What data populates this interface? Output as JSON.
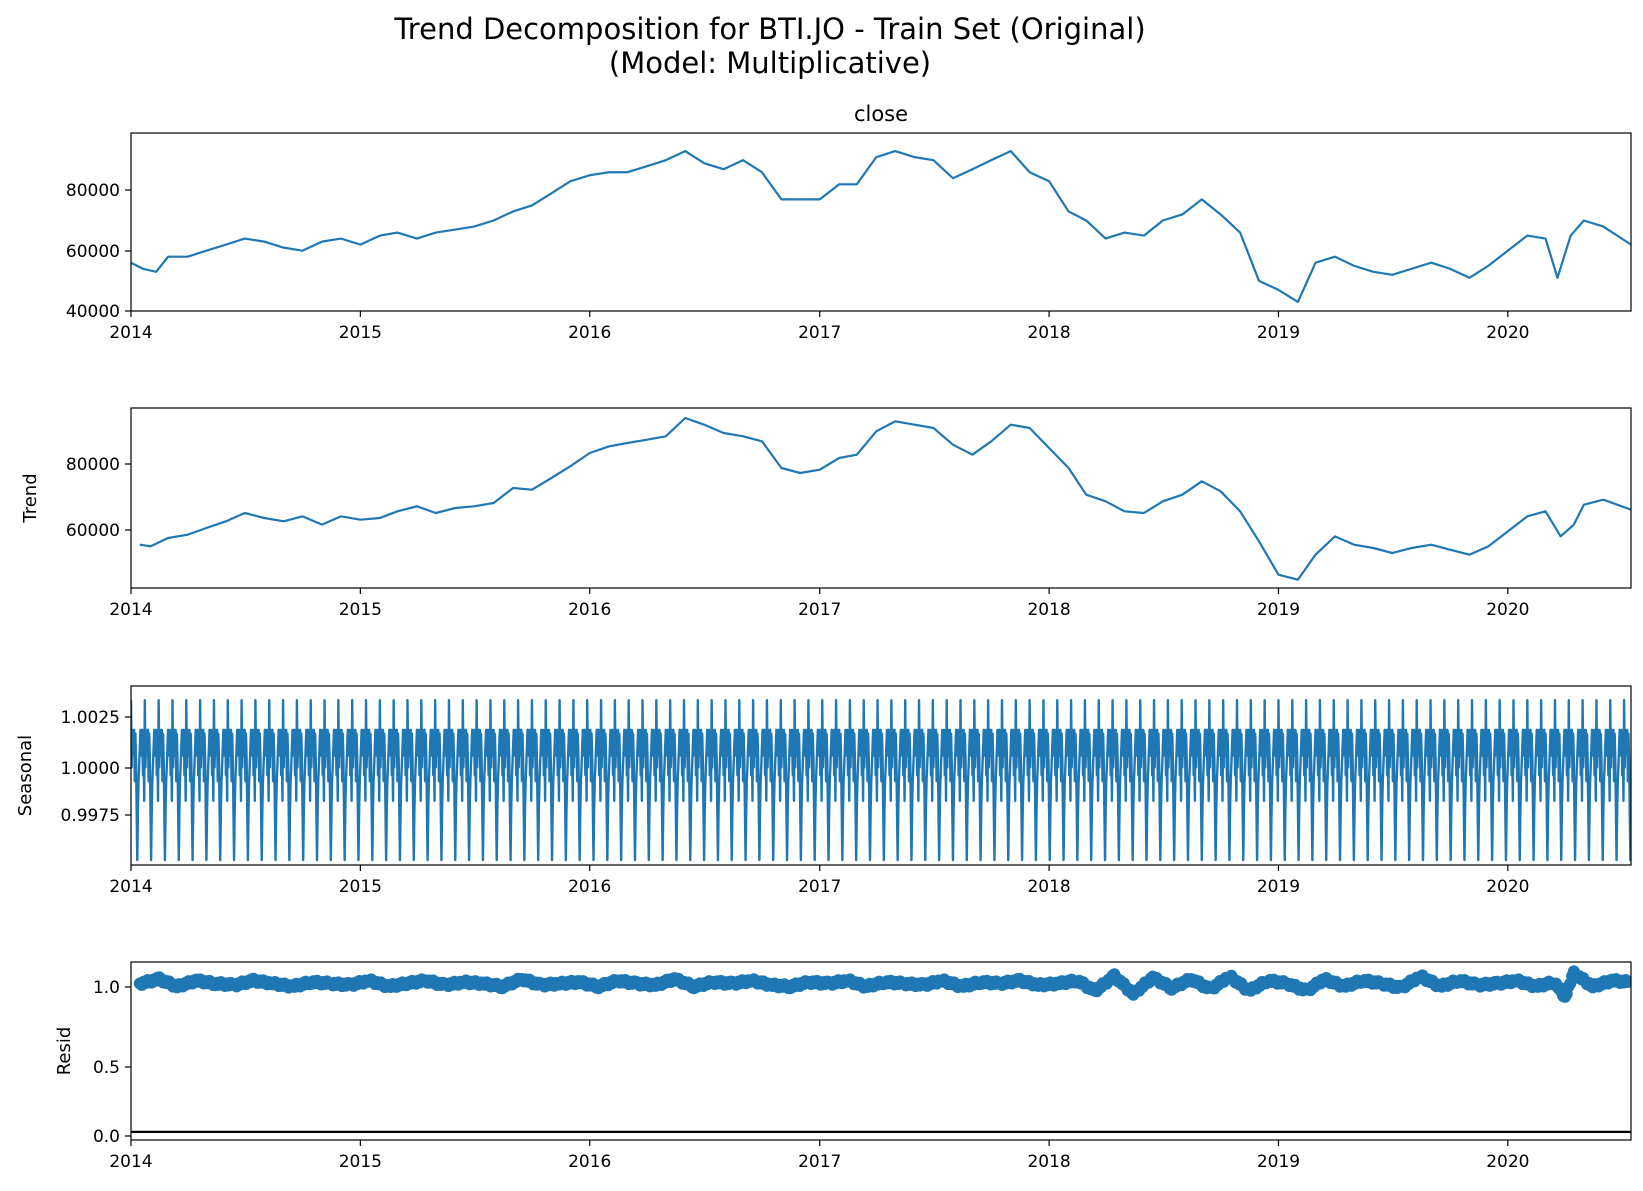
{
  "figure": {
    "title_line1": "Trend Decomposition for BTI.JO - Train Set (Original)",
    "title_line2": "(Model: Multiplicative)"
  },
  "chart_data": [
    {
      "type": "line",
      "panel": "close",
      "title": "close",
      "ylabel": "",
      "x_range": [
        "2014-01-01",
        "2020-07-15"
      ],
      "xticks": [
        "2014",
        "2015",
        "2016",
        "2017",
        "2018",
        "2019",
        "2020"
      ],
      "ylim": [
        40000,
        99000
      ],
      "yticks": [
        "40000",
        "60000",
        "80000"
      ],
      "series_color": "#1f77b4",
      "series": [
        {
          "x": [
            "2014-01-01",
            "2014-01-20",
            "2014-02-10",
            "2014-03-01",
            "2014-04-01",
            "2014-05-01",
            "2014-06-01",
            "2014-07-01",
            "2014-08-01",
            "2014-09-01",
            "2014-10-01",
            "2014-11-01",
            "2014-12-01",
            "2015-01-01",
            "2015-02-01",
            "2015-03-01",
            "2015-04-01",
            "2015-05-01",
            "2015-06-01",
            "2015-07-01",
            "2015-08-01",
            "2015-09-01",
            "2015-10-01",
            "2015-11-01",
            "2015-12-01",
            "2016-01-01",
            "2016-02-01",
            "2016-03-01",
            "2016-04-01",
            "2016-05-01",
            "2016-06-01",
            "2016-07-01",
            "2016-08-01",
            "2016-09-01",
            "2016-10-01",
            "2016-11-01",
            "2016-12-01",
            "2017-01-01",
            "2017-02-01",
            "2017-03-01",
            "2017-04-01",
            "2017-05-01",
            "2017-06-01",
            "2017-07-01",
            "2017-08-01",
            "2017-09-01",
            "2017-10-01",
            "2017-11-01",
            "2017-12-01",
            "2018-01-01",
            "2018-02-01",
            "2018-03-01",
            "2018-04-01",
            "2018-05-01",
            "2018-06-01",
            "2018-07-01",
            "2018-08-01",
            "2018-09-01",
            "2018-10-01",
            "2018-11-01",
            "2018-12-01",
            "2019-01-01",
            "2019-02-01",
            "2019-03-01",
            "2019-04-01",
            "2019-05-01",
            "2019-06-01",
            "2019-07-01",
            "2019-08-01",
            "2019-09-01",
            "2019-10-01",
            "2019-11-01",
            "2019-12-01",
            "2020-01-01",
            "2020-02-01",
            "2020-03-01",
            "2020-03-20",
            "2020-04-10",
            "2020-05-01",
            "2020-06-01",
            "2020-07-15"
          ],
          "y": [
            56000,
            54000,
            53000,
            58000,
            58000,
            60000,
            62000,
            64000,
            63000,
            61000,
            60000,
            63000,
            64000,
            62000,
            65000,
            66000,
            64000,
            66000,
            67000,
            68000,
            70000,
            73000,
            75000,
            79000,
            83000,
            85000,
            86000,
            86000,
            88000,
            90000,
            93000,
            89000,
            87000,
            90000,
            86000,
            77000,
            77000,
            77000,
            82000,
            82000,
            91000,
            93000,
            91000,
            90000,
            84000,
            87000,
            90000,
            93000,
            86000,
            83000,
            73000,
            70000,
            64000,
            66000,
            65000,
            70000,
            72000,
            77000,
            72000,
            66000,
            50000,
            47000,
            43000,
            56000,
            58000,
            55000,
            53000,
            52000,
            54000,
            56000,
            54000,
            51000,
            55000,
            60000,
            65000,
            64000,
            51000,
            65000,
            70000,
            68000,
            62000
          ]
        }
      ]
    },
    {
      "type": "line",
      "panel": "trend",
      "title": "",
      "ylabel": "Trend",
      "x_range": [
        "2014-01-01",
        "2020-07-15"
      ],
      "xticks": [
        "2014",
        "2015",
        "2016",
        "2017",
        "2018",
        "2019",
        "2020"
      ],
      "ylim": [
        42000,
        96000
      ],
      "yticks": [
        "60000",
        "80000"
      ],
      "series_color": "#1f77b4",
      "series": [
        {
          "x": [
            "2014-01-15",
            "2014-02-01",
            "2014-03-01",
            "2014-04-01",
            "2014-05-01",
            "2014-06-01",
            "2014-07-01",
            "2014-08-01",
            "2014-09-01",
            "2014-10-01",
            "2014-11-01",
            "2014-12-01",
            "2015-01-01",
            "2015-02-01",
            "2015-03-01",
            "2015-04-01",
            "2015-05-01",
            "2015-06-01",
            "2015-07-01",
            "2015-08-01",
            "2015-09-01",
            "2015-10-01",
            "2015-11-01",
            "2015-12-01",
            "2016-01-01",
            "2016-02-01",
            "2016-03-01",
            "2016-04-01",
            "2016-05-01",
            "2016-06-01",
            "2016-07-01",
            "2016-08-01",
            "2016-09-01",
            "2016-10-01",
            "2016-11-01",
            "2016-12-01",
            "2017-01-01",
            "2017-02-01",
            "2017-03-01",
            "2017-04-01",
            "2017-05-01",
            "2017-06-01",
            "2017-07-01",
            "2017-08-01",
            "2017-09-01",
            "2017-10-01",
            "2017-11-01",
            "2017-12-01",
            "2018-01-01",
            "2018-02-01",
            "2018-03-01",
            "2018-04-01",
            "2018-05-01",
            "2018-06-01",
            "2018-07-01",
            "2018-08-01",
            "2018-09-01",
            "2018-10-01",
            "2018-11-01",
            "2018-12-01",
            "2019-01-01",
            "2019-02-01",
            "2019-03-01",
            "2019-04-01",
            "2019-05-01",
            "2019-06-01",
            "2019-07-01",
            "2019-08-01",
            "2019-09-01",
            "2019-10-01",
            "2019-11-01",
            "2019-12-01",
            "2020-01-01",
            "2020-02-01",
            "2020-03-01",
            "2020-03-25",
            "2020-04-15",
            "2020-05-01",
            "2020-06-01",
            "2020-07-15"
          ],
          "y": [
            55000,
            54500,
            57000,
            58000,
            60000,
            62000,
            64500,
            63000,
            62000,
            63500,
            61000,
            63500,
            62500,
            63000,
            65000,
            66500,
            64500,
            66000,
            66500,
            67500,
            72000,
            71500,
            75000,
            78500,
            82500,
            84500,
            85500,
            86500,
            87500,
            93000,
            91000,
            88500,
            87500,
            86000,
            78000,
            76500,
            77500,
            81000,
            82000,
            89000,
            92000,
            91000,
            90000,
            85000,
            82000,
            86000,
            91000,
            90000,
            84000,
            78000,
            70000,
            68000,
            65000,
            64500,
            68000,
            70000,
            74000,
            71000,
            65000,
            56000,
            46000,
            44500,
            52000,
            57500,
            55000,
            54000,
            52500,
            54000,
            55000,
            53500,
            52000,
            54500,
            59000,
            63500,
            65000,
            57500,
            61000,
            67000,
            68500,
            65500
          ]
        }
      ]
    },
    {
      "type": "line",
      "panel": "seasonal",
      "title": "",
      "ylabel": "Seasonal",
      "x_range": [
        "2014-01-01",
        "2020-07-15"
      ],
      "xticks": [
        "2014",
        "2015",
        "2016",
        "2017",
        "2018",
        "2019",
        "2020"
      ],
      "ylim": [
        0.99525,
        1.00432
      ],
      "yticks": [
        "0.9975",
        "1.0000",
        "1.0025"
      ],
      "period_days": 22,
      "series_color": "#1f77b4",
      "pattern": [
        1.0036,
        1.0002,
        1.0021,
        1.0008,
        1.0015,
        1.0021,
        0.9995,
        1.0019,
        1.0006,
        0.998,
        0.9955,
        0.998,
        0.9995,
        1.0003,
        1.0012,
        1.0021,
        1.0008,
        1.0014,
        1.0021,
        0.9998,
        1.0011,
        0.9985
      ],
      "series": [
        {
          "name": "",
          "values": []
        }
      ]
    },
    {
      "type": "scatter",
      "panel": "resid",
      "title": "",
      "ylabel": "Resid",
      "x_range": [
        "2014-01-01",
        "2020-07-15"
      ],
      "xticks": [
        "2014",
        "2015",
        "2016",
        "2017",
        "2018",
        "2019",
        "2020"
      ],
      "ylim": [
        -0.055,
        1.145
      ],
      "yticks": [
        "0.0",
        "0.5",
        "1.0"
      ],
      "baseline": 0,
      "series_color": "#1f77b4",
      "series": [
        {
          "x": [
            "2014-01-15",
            "2014-02-15",
            "2014-03-15",
            "2014-04-15",
            "2014-05-15",
            "2014-06-15",
            "2014-07-15",
            "2014-08-15",
            "2014-09-15",
            "2014-10-15",
            "2014-11-15",
            "2014-12-15",
            "2015-01-15",
            "2015-02-15",
            "2015-03-15",
            "2015-04-15",
            "2015-05-15",
            "2015-06-15",
            "2015-07-15",
            "2015-08-15",
            "2015-09-15",
            "2015-10-15",
            "2015-11-15",
            "2015-12-15",
            "2016-01-15",
            "2016-02-15",
            "2016-03-15",
            "2016-04-15",
            "2016-05-15",
            "2016-06-15",
            "2016-07-15",
            "2016-08-15",
            "2016-09-15",
            "2016-10-15",
            "2016-11-15",
            "2016-12-15",
            "2017-01-15",
            "2017-02-15",
            "2017-03-15",
            "2017-04-15",
            "2017-05-15",
            "2017-06-15",
            "2017-07-15",
            "2017-08-15",
            "2017-09-15",
            "2017-10-15",
            "2017-11-15",
            "2017-12-15",
            "2018-01-15",
            "2018-02-15",
            "2018-03-15",
            "2018-04-15",
            "2018-05-15",
            "2018-06-15",
            "2018-07-15",
            "2018-08-15",
            "2018-09-15",
            "2018-10-15",
            "2018-11-15",
            "2018-12-15",
            "2019-01-15",
            "2019-02-15",
            "2019-03-15",
            "2019-04-15",
            "2019-05-15",
            "2019-06-15",
            "2019-07-15",
            "2019-08-15",
            "2019-09-15",
            "2019-10-15",
            "2019-11-15",
            "2019-12-15",
            "2020-01-15",
            "2020-02-15",
            "2020-03-15",
            "2020-04-01",
            "2020-04-15",
            "2020-05-15",
            "2020-06-15",
            "2020-07-10"
          ],
          "y": [
            1.0,
            1.03,
            0.98,
            1.02,
            1.0,
            0.99,
            1.02,
            1.0,
            0.98,
            1.01,
            1.0,
            0.99,
            1.02,
            0.98,
            1.0,
            1.02,
            0.99,
            1.01,
            1.0,
            0.98,
            1.03,
            0.99,
            1.0,
            1.01,
            0.98,
            1.02,
            1.0,
            0.99,
            1.03,
            0.98,
            1.01,
            1.0,
            1.02,
            0.99,
            0.98,
            1.01,
            1.0,
            1.02,
            0.98,
            1.01,
            1.0,
            0.99,
            1.02,
            0.98,
            1.01,
            1.0,
            1.02,
            0.99,
            1.0,
            1.02,
            0.95,
            1.05,
            0.93,
            1.04,
            0.97,
            1.03,
            0.96,
            1.05,
            0.95,
            1.02,
            1.0,
            0.95,
            1.03,
            0.98,
            1.02,
            1.0,
            0.97,
            1.05,
            0.98,
            1.02,
            0.99,
            1.0,
            1.02,
            0.98,
            1.01,
            0.91,
            1.07,
            0.98,
            1.02,
            1.01
          ]
        }
      ]
    }
  ]
}
